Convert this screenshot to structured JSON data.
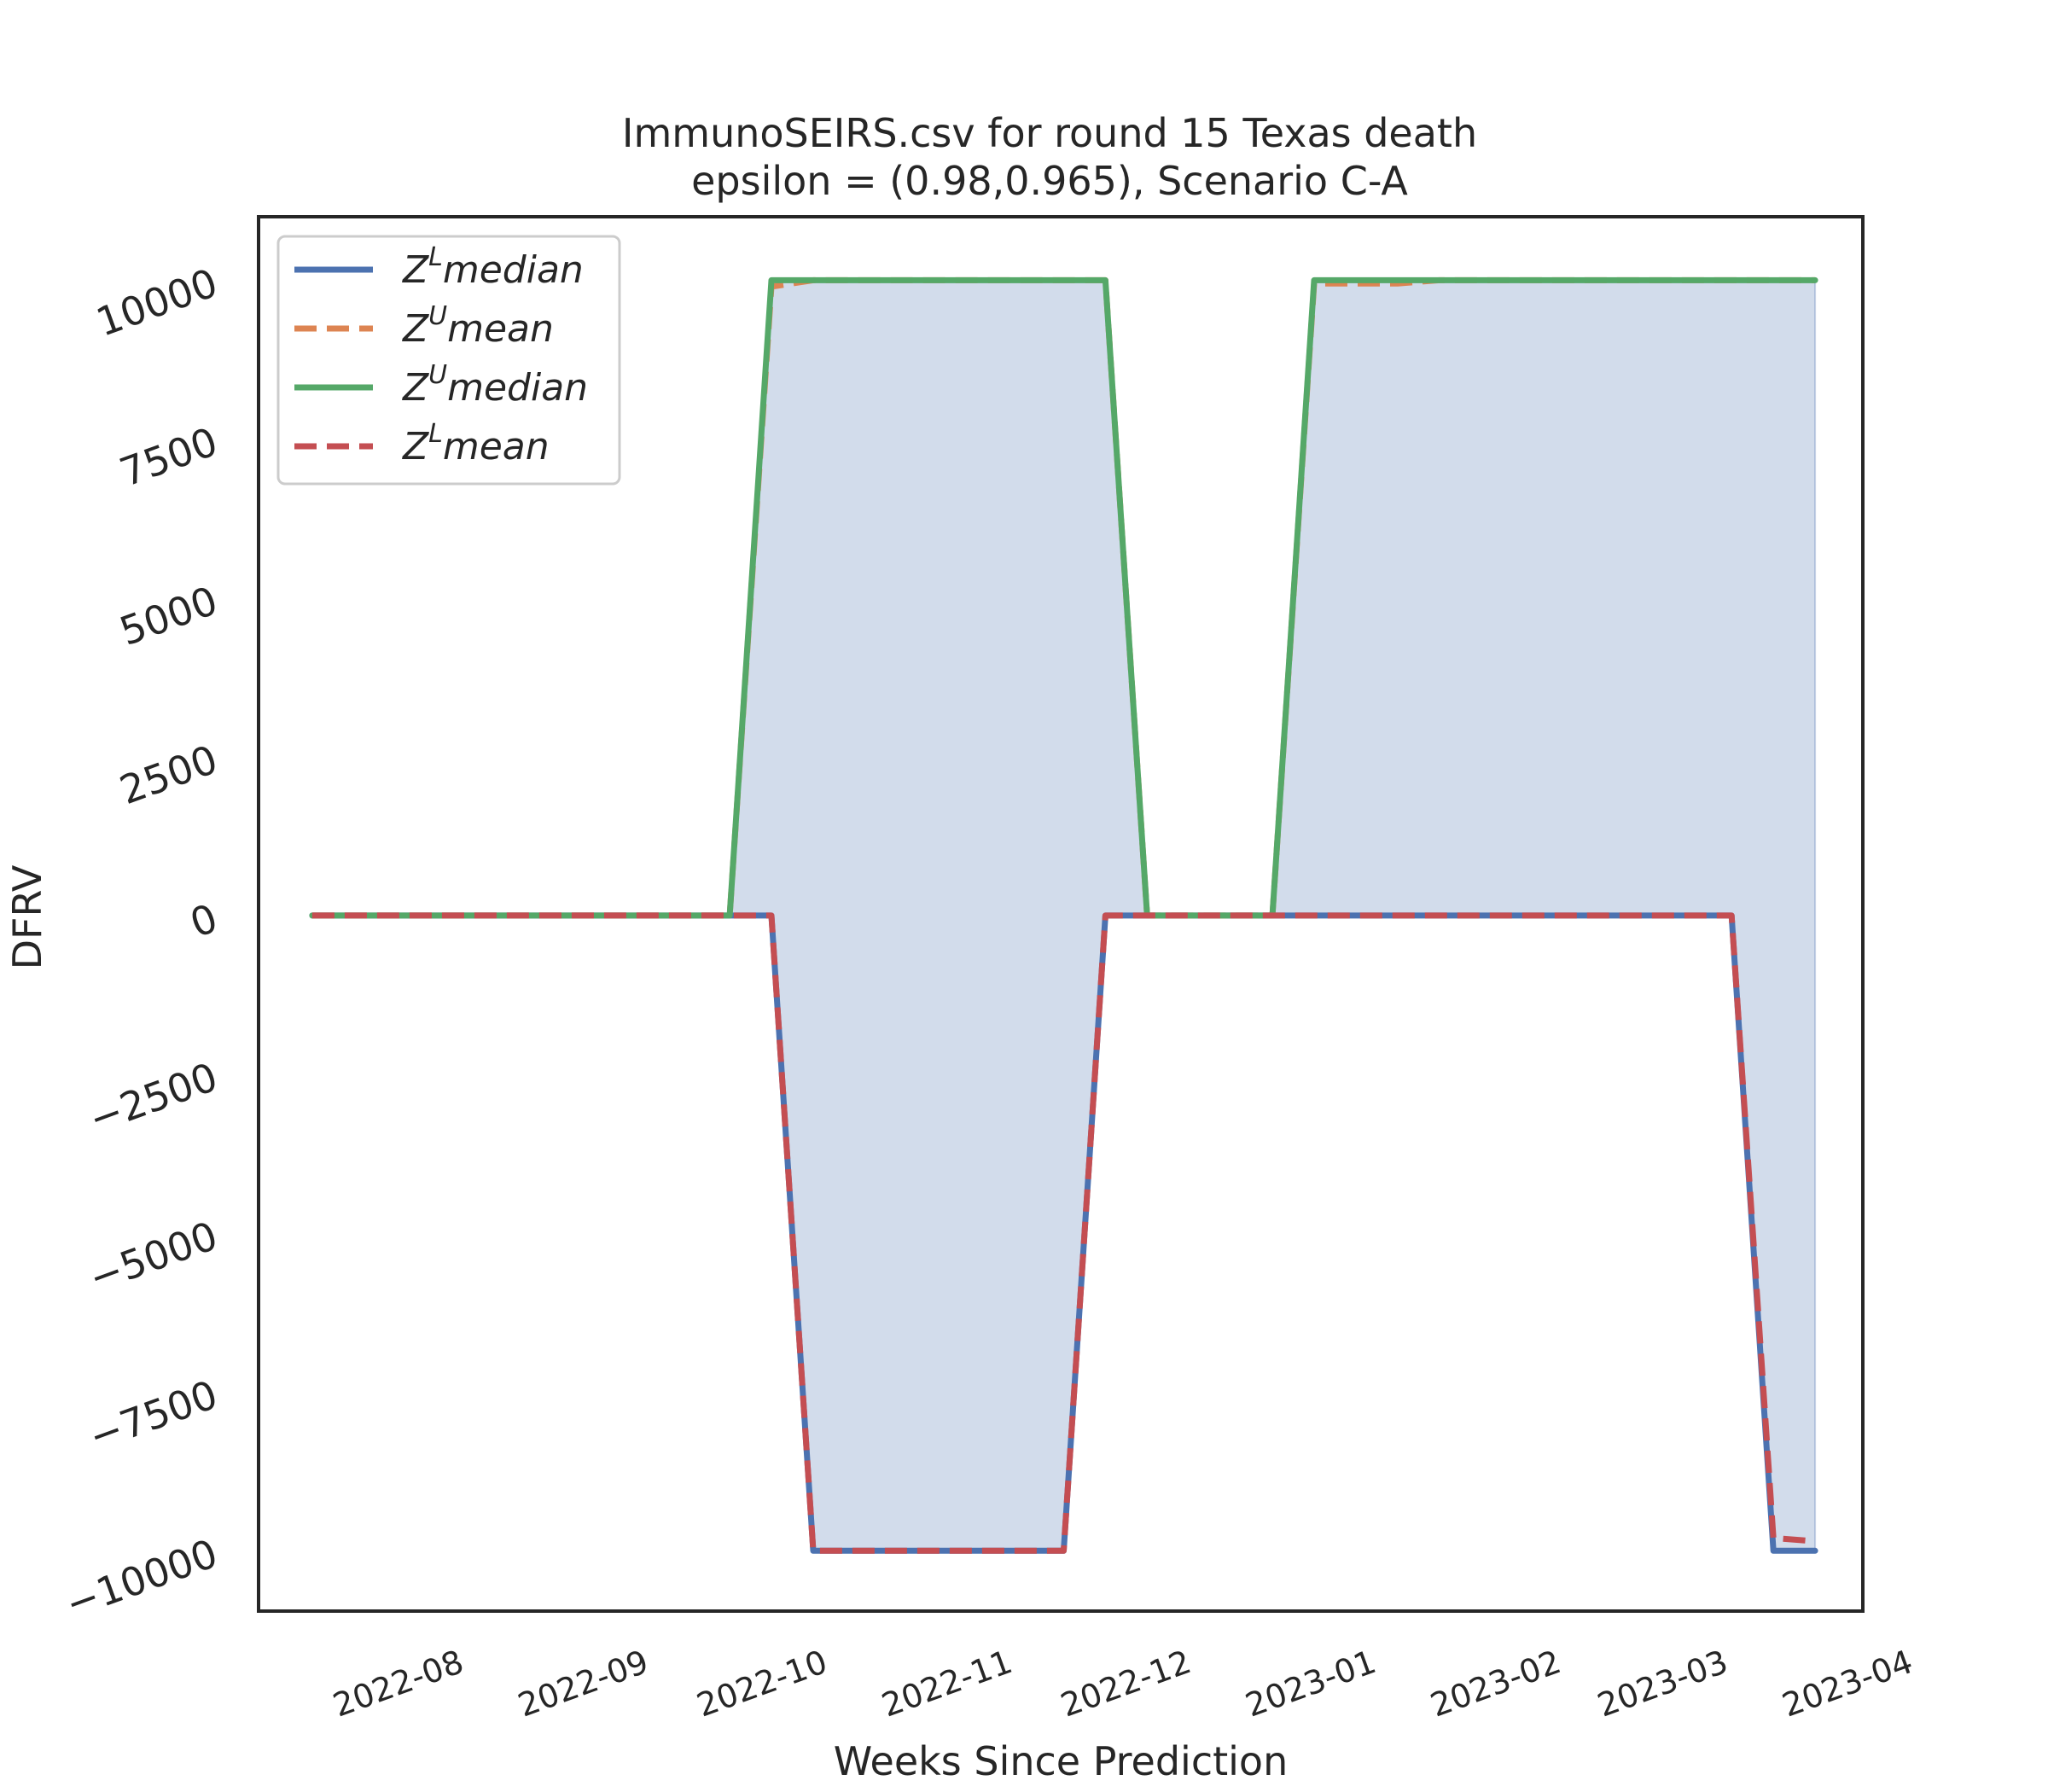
{
  "chart_data": {
    "type": "line",
    "title_lines": [
      "ImmunoSEIRS.csv for round 15 Texas  death",
      "epsilon = (0.98,0.965), Scenario C-A"
    ],
    "xlabel": "Weeks Since Prediction",
    "ylabel": "DFRV",
    "x_ticks": [
      "2022-08",
      "2022-09",
      "2022-10",
      "2022-11",
      "2022-12",
      "2023-01",
      "2023-02",
      "2023-03",
      "2023-04"
    ],
    "y_ticks": [
      -10000,
      -7500,
      -5000,
      -2500,
      0,
      2500,
      5000,
      7500,
      10000
    ],
    "y_tick_labels": [
      "−10000",
      "−7500",
      "−5000",
      "−2500",
      "0",
      "2500",
      "5000",
      "7500",
      "10000"
    ],
    "ylim": [
      -10950,
      11000
    ],
    "xlim": [
      "2022-07-07",
      "2023-04-02"
    ],
    "grid": false,
    "legend_position": "upper-left",
    "x": [
      "2022-07-16",
      "2022-07-23",
      "2022-07-30",
      "2022-08-06",
      "2022-08-13",
      "2022-08-20",
      "2022-08-27",
      "2022-09-03",
      "2022-09-10",
      "2022-09-17",
      "2022-09-24",
      "2022-10-01",
      "2022-10-08",
      "2022-10-15",
      "2022-10-22",
      "2022-10-29",
      "2022-11-05",
      "2022-11-12",
      "2022-11-19",
      "2022-11-26",
      "2022-12-03",
      "2022-12-10",
      "2022-12-17",
      "2022-12-24",
      "2022-12-31",
      "2023-01-07",
      "2023-01-14",
      "2023-01-21",
      "2023-01-28",
      "2023-02-04",
      "2023-02-11",
      "2023-02-18",
      "2023-02-25",
      "2023-03-04",
      "2023-03-11",
      "2023-03-18",
      "2023-03-25"
    ],
    "series": [
      {
        "name": "Z^L median",
        "base": "Z",
        "sup": "L",
        "stat": "median",
        "color": "#4c72b0",
        "dash": "solid",
        "values": [
          0,
          0,
          0,
          0,
          0,
          0,
          0,
          0,
          0,
          0,
          0,
          0,
          -10000,
          -10000,
          -10000,
          -10000,
          -10000,
          -10000,
          -10000,
          0,
          0,
          0,
          0,
          0,
          0,
          0,
          0,
          0,
          0,
          0,
          0,
          0,
          0,
          0,
          0,
          -10000,
          -10000
        ]
      },
      {
        "name": "Z^U mean",
        "base": "Z",
        "sup": "U",
        "stat": "mean",
        "color": "#dd8452",
        "dash": "dashed",
        "values": [
          0,
          0,
          0,
          0,
          0,
          0,
          0,
          0,
          0,
          0,
          0,
          9900,
          10000,
          10000,
          10000,
          10000,
          10000,
          10000,
          10000,
          10000,
          0,
          0,
          0,
          0,
          9950,
          9950,
          9950,
          10000,
          10000,
          10000,
          10000,
          10000,
          10000,
          10000,
          10000,
          10000,
          10000
        ]
      },
      {
        "name": "Z^U median",
        "base": "Z",
        "sup": "U",
        "stat": "median",
        "color": "#55a868",
        "dash": "solid",
        "values": [
          0,
          0,
          0,
          0,
          0,
          0,
          0,
          0,
          0,
          0,
          0,
          10000,
          10000,
          10000,
          10000,
          10000,
          10000,
          10000,
          10000,
          10000,
          0,
          0,
          0,
          0,
          10000,
          10000,
          10000,
          10000,
          10000,
          10000,
          10000,
          10000,
          10000,
          10000,
          10000,
          10000,
          10000
        ]
      },
      {
        "name": "Z^L mean",
        "base": "Z",
        "sup": "L",
        "stat": "mean",
        "color": "#c44e52",
        "dash": "dashed",
        "values": [
          0,
          0,
          0,
          0,
          0,
          0,
          0,
          0,
          0,
          0,
          0,
          0,
          -10000,
          -10000,
          -10000,
          -10000,
          -10000,
          -10000,
          -10000,
          0,
          0,
          0,
          0,
          0,
          0,
          0,
          0,
          0,
          0,
          0,
          0,
          0,
          0,
          0,
          0,
          -9800,
          -9850
        ]
      }
    ],
    "fill": {
      "between": [
        "Z^L median",
        "Z^U median"
      ],
      "color": "#4c72b0",
      "opacity": 0.25
    }
  }
}
